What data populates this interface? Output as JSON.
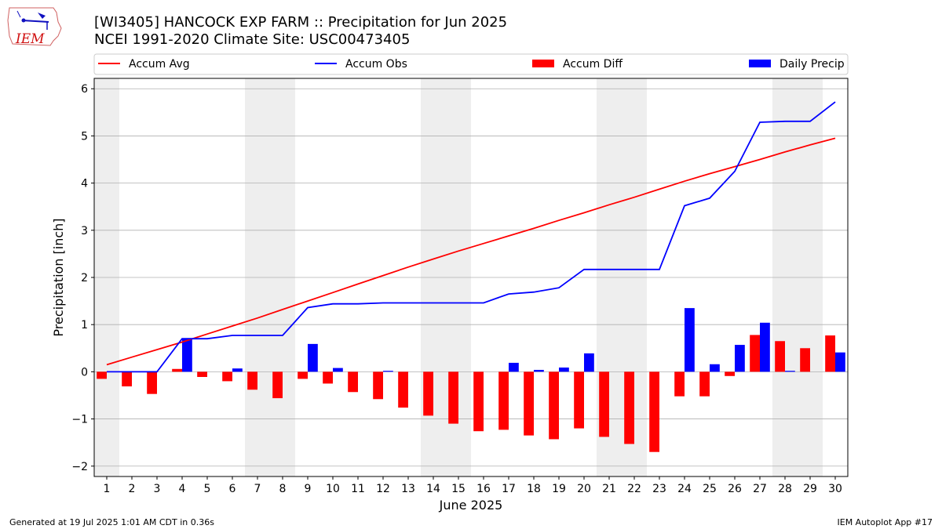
{
  "header": {
    "title_line1": "[WI3405] HANCOCK EXP FARM :: Precipitation for Jun 2025",
    "title_line2": "NCEI 1991-2020 Climate Site: USC00473405",
    "logo_text": "IEM"
  },
  "footer": {
    "generated": "Generated at 19 Jul 2025 1:01 AM CDT in 0.36s",
    "app": "IEM Autoplot App #17"
  },
  "colors": {
    "accum_avg": "#ff0000",
    "accum_obs": "#0000ff",
    "accum_diff": "#ff0000",
    "daily_precip": "#0000ff",
    "weekend_shade": "#eeeeee",
    "grid": "#b0b0b0"
  },
  "chart_data": {
    "type": "bar",
    "xlabel": "June 2025",
    "ylabel": "Precipitation [inch]",
    "ylim": [
      -2.22,
      6.22
    ],
    "yticks": [
      -2,
      -1,
      0,
      1,
      2,
      3,
      4,
      5,
      6
    ],
    "ytick_labels": [
      "−2",
      "−1",
      "0",
      "1",
      "2",
      "3",
      "4",
      "5",
      "6"
    ],
    "grid": "horizontal",
    "legend_position": "top",
    "categories": [
      "1",
      "2",
      "3",
      "4",
      "5",
      "6",
      "7",
      "8",
      "9",
      "10",
      "11",
      "12",
      "13",
      "14",
      "15",
      "16",
      "17",
      "18",
      "19",
      "20",
      "21",
      "22",
      "23",
      "24",
      "25",
      "26",
      "27",
      "28",
      "29",
      "30"
    ],
    "weekend_days": [
      1,
      7,
      8,
      14,
      15,
      21,
      22,
      28,
      29
    ],
    "series": [
      {
        "name": "Accum Avg",
        "kind": "line",
        "values": [
          0.15,
          0.31,
          0.47,
          0.63,
          0.8,
          0.97,
          1.14,
          1.32,
          1.5,
          1.68,
          1.86,
          2.04,
          2.22,
          2.39,
          2.56,
          2.72,
          2.88,
          3.04,
          3.21,
          3.37,
          3.54,
          3.7,
          3.87,
          4.04,
          4.2,
          4.35,
          4.5,
          4.66,
          4.81,
          4.95
        ]
      },
      {
        "name": "Accum Obs",
        "kind": "line",
        "values": [
          0.0,
          0.0,
          0.0,
          0.7,
          0.7,
          0.77,
          0.77,
          0.77,
          1.36,
          1.44,
          1.44,
          1.46,
          1.46,
          1.46,
          1.46,
          1.46,
          1.65,
          1.69,
          1.78,
          2.17,
          2.17,
          2.17,
          2.17,
          3.52,
          3.68,
          4.25,
          5.29,
          5.31,
          5.31,
          5.72
        ]
      },
      {
        "name": "Accum Diff",
        "kind": "bar",
        "values": [
          -0.15,
          -0.31,
          -0.47,
          0.06,
          -0.11,
          -0.2,
          -0.38,
          -0.56,
          -0.15,
          -0.25,
          -0.43,
          -0.58,
          -0.76,
          -0.93,
          -1.1,
          -1.26,
          -1.23,
          -1.35,
          -1.43,
          -1.2,
          -1.38,
          -1.53,
          -1.7,
          -0.52,
          -0.52,
          -0.09,
          0.78,
          0.65,
          0.5,
          0.77
        ]
      },
      {
        "name": "Daily Precip",
        "kind": "bar",
        "values": [
          0.0,
          0.0,
          0.0,
          0.7,
          0.0,
          0.07,
          0.0,
          0.0,
          0.59,
          0.08,
          0.0,
          0.02,
          0.0,
          0.0,
          0.0,
          0.0,
          0.19,
          0.04,
          0.09,
          0.39,
          0.0,
          0.0,
          0.0,
          1.35,
          0.16,
          0.57,
          1.04,
          0.02,
          0.0,
          0.41
        ]
      }
    ]
  }
}
